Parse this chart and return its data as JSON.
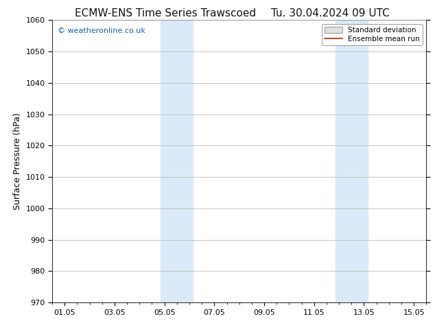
{
  "title_left": "ECMW-ENS Time Series Trawscoed",
  "title_right": "Tu. 30.04.2024 09 UTC",
  "ylabel": "Surface Pressure (hPa)",
  "ylim": [
    970,
    1060
  ],
  "yticks": [
    970,
    980,
    990,
    1000,
    1010,
    1020,
    1030,
    1040,
    1050,
    1060
  ],
  "xtick_labels": [
    "01.05",
    "03.05",
    "05.05",
    "07.05",
    "09.05",
    "11.05",
    "13.05",
    "15.05"
  ],
  "xtick_positions": [
    0,
    2,
    4,
    6,
    8,
    10,
    12,
    14
  ],
  "xlim": [
    -0.5,
    14.5
  ],
  "shade_regions": [
    {
      "x_start": 3.85,
      "x_end": 5.15
    },
    {
      "x_start": 10.85,
      "x_end": 12.15
    }
  ],
  "shade_color": "#daeaf8",
  "watermark_text": "© weatheronline.co.uk",
  "watermark_color": "#1a5fa8",
  "legend_std_label": "Standard deviation",
  "legend_mean_label": "Ensemble mean run",
  "legend_std_facecolor": "#e0e0e0",
  "legend_std_edgecolor": "#888888",
  "legend_mean_color": "#cc2200",
  "bg_color": "#ffffff",
  "grid_color": "#bbbbbb",
  "title_fontsize": 11,
  "ylabel_fontsize": 9,
  "tick_fontsize": 8,
  "watermark_fontsize": 8,
  "legend_fontsize": 7.5
}
